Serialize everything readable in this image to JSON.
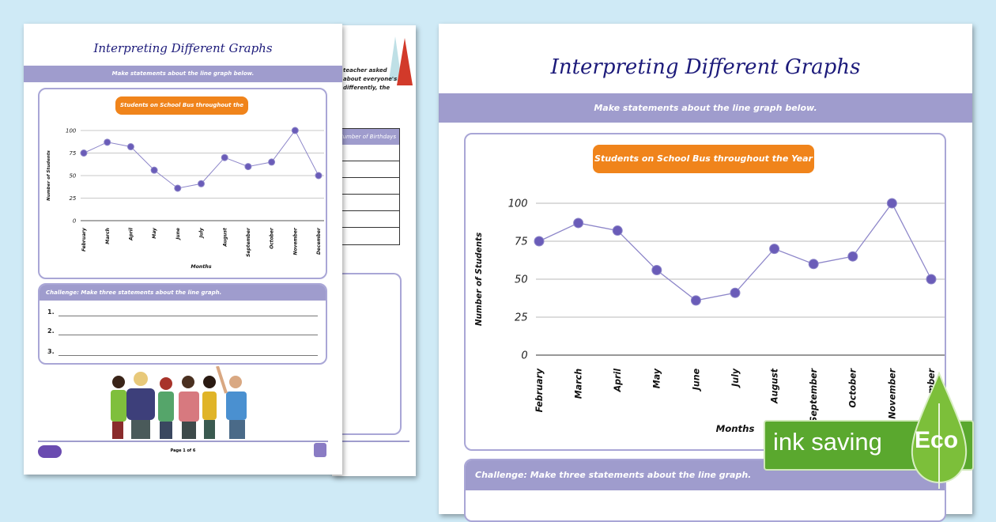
{
  "worksheet": {
    "title": "Interpreting Different Graphs",
    "instruction": "Make statements about the line graph below.",
    "challenge": "Challenge: Make three statements about the line graph.",
    "answer_numbers": [
      "1.",
      "2.",
      "3."
    ],
    "footer_page": "Page 1 of 6"
  },
  "back_page": {
    "text_lines": [
      "teacher asked",
      "about everyone's",
      "differently, the"
    ],
    "table_header": "Number of Birthdays"
  },
  "badge": {
    "label": "ink saving",
    "eco": "Eco",
    "color": "#5aa82e"
  },
  "colors": {
    "accent": "#9f9ccd",
    "orange": "#f0841b",
    "point": "#6a5cb8",
    "title": "#1c1a7a"
  },
  "chart_data": {
    "type": "line",
    "title": "Students on School Bus throughout the Year",
    "xlabel": "Months",
    "ylabel": "Number of Students",
    "categories": [
      "February",
      "March",
      "April",
      "May",
      "June",
      "July",
      "August",
      "September",
      "October",
      "November",
      "December"
    ],
    "values": [
      75,
      87,
      82,
      56,
      36,
      41,
      70,
      60,
      65,
      100,
      50
    ],
    "ylim": [
      0,
      100
    ],
    "yticks": [
      0,
      25,
      50,
      75,
      100
    ],
    "grid": true
  }
}
